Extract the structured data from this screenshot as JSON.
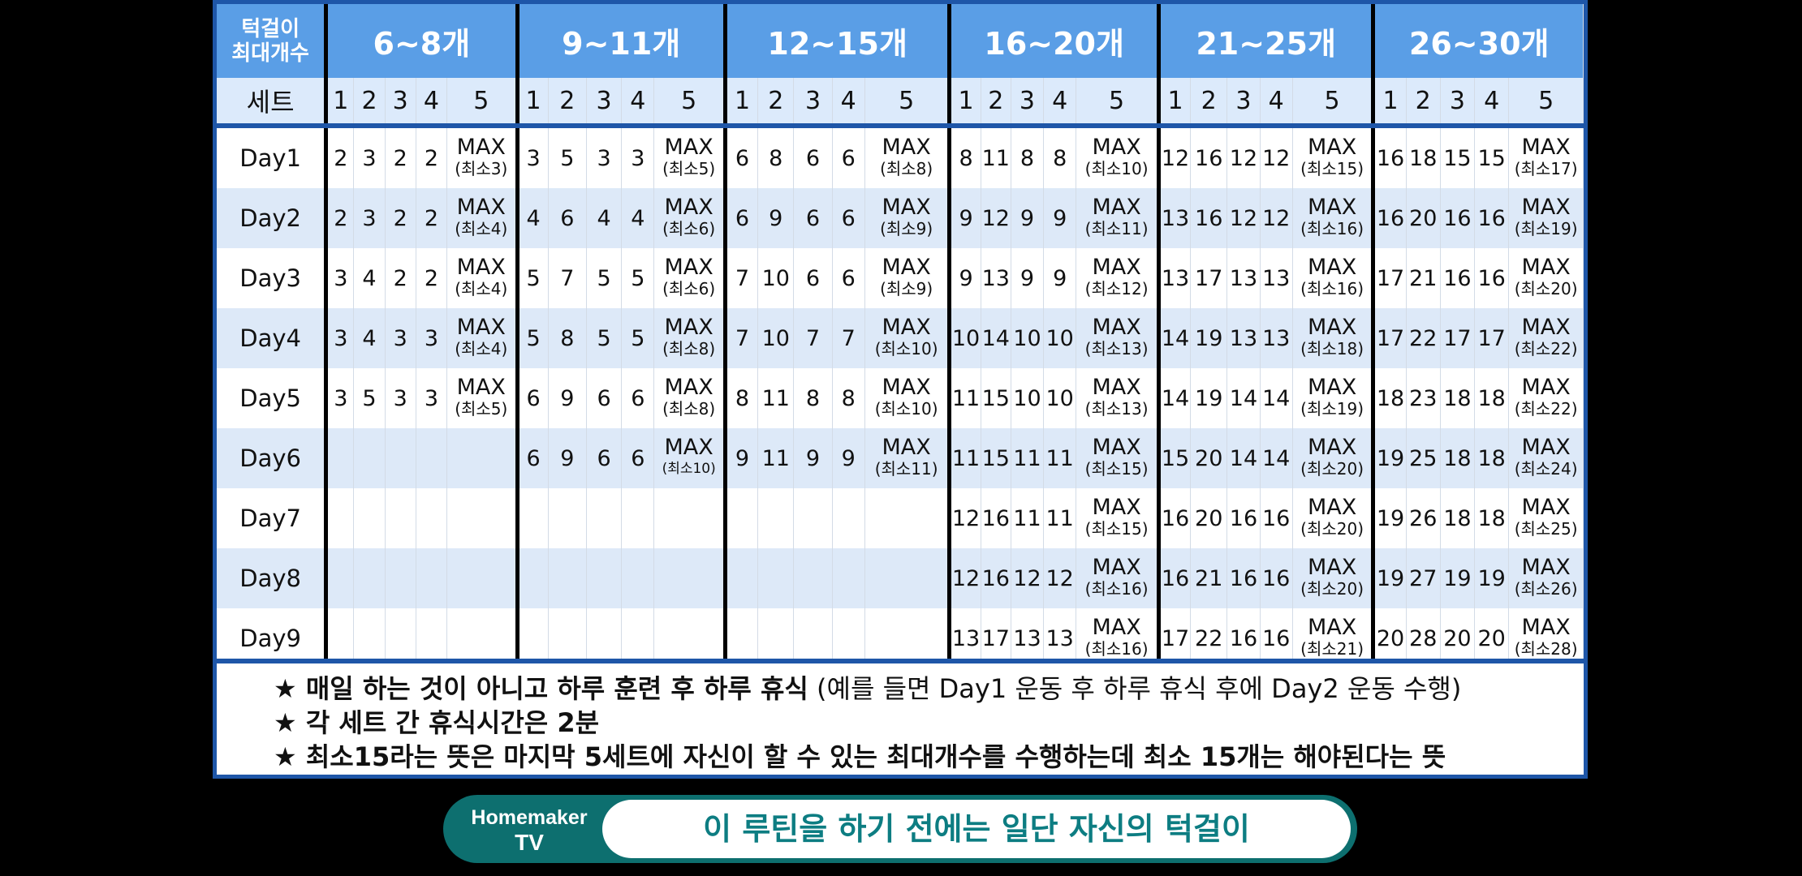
{
  "table": {
    "corner_line1": "턱걸이",
    "corner_line2": "최대개수",
    "sets_label": "세트",
    "groups": [
      "6~8개",
      "9~11개",
      "12~15개",
      "16~20개",
      "21~25개",
      "26~30개"
    ],
    "set_numbers": [
      "1",
      "2",
      "3",
      "4",
      "5"
    ],
    "max_label": "MAX",
    "days": [
      {
        "label": "Day1",
        "cells": [
          [
            "2",
            "3",
            "2",
            "2",
            "(최소3)"
          ],
          [
            "3",
            "5",
            "3",
            "3",
            "(최소5)"
          ],
          [
            "6",
            "8",
            "6",
            "6",
            "(최소8)"
          ],
          [
            "8",
            "11",
            "8",
            "8",
            "(최소10)"
          ],
          [
            "12",
            "16",
            "12",
            "12",
            "(최소15)"
          ],
          [
            "16",
            "18",
            "15",
            "15",
            "(최소17)"
          ]
        ]
      },
      {
        "label": "Day2",
        "cells": [
          [
            "2",
            "3",
            "2",
            "2",
            "(최소4)"
          ],
          [
            "4",
            "6",
            "4",
            "4",
            "(최소6)"
          ],
          [
            "6",
            "9",
            "6",
            "6",
            "(최소9)"
          ],
          [
            "9",
            "12",
            "9",
            "9",
            "(최소11)"
          ],
          [
            "13",
            "16",
            "12",
            "12",
            "(최소16)"
          ],
          [
            "16",
            "20",
            "16",
            "16",
            "(최소19)"
          ]
        ]
      },
      {
        "label": "Day3",
        "cells": [
          [
            "3",
            "4",
            "2",
            "2",
            "(최소4)"
          ],
          [
            "5",
            "7",
            "5",
            "5",
            "(최소6)"
          ],
          [
            "7",
            "10",
            "6",
            "6",
            "(최소9)"
          ],
          [
            "9",
            "13",
            "9",
            "9",
            "(최소12)"
          ],
          [
            "13",
            "17",
            "13",
            "13",
            "(최소16)"
          ],
          [
            "17",
            "21",
            "16",
            "16",
            "(최소20)"
          ]
        ]
      },
      {
        "label": "Day4",
        "cells": [
          [
            "3",
            "4",
            "3",
            "3",
            "(최소4)"
          ],
          [
            "5",
            "8",
            "5",
            "5",
            "(최소8)"
          ],
          [
            "7",
            "10",
            "7",
            "7",
            "(최소10)"
          ],
          [
            "10",
            "14",
            "10",
            "10",
            "(최소13)"
          ],
          [
            "14",
            "19",
            "13",
            "13",
            "(최소18)"
          ],
          [
            "17",
            "22",
            "17",
            "17",
            "(최소22)"
          ]
        ]
      },
      {
        "label": "Day5",
        "cells": [
          [
            "3",
            "5",
            "3",
            "3",
            "(최소5)"
          ],
          [
            "6",
            "9",
            "6",
            "6",
            "(최소8)"
          ],
          [
            "8",
            "11",
            "8",
            "8",
            "(최소10)"
          ],
          [
            "11",
            "15",
            "10",
            "10",
            "(최소13)"
          ],
          [
            "14",
            "19",
            "14",
            "14",
            "(최소19)"
          ],
          [
            "18",
            "23",
            "18",
            "18",
            "(최소22)"
          ]
        ]
      },
      {
        "label": "Day6",
        "cells": [
          null,
          [
            "6",
            "9",
            "6",
            "6",
            "(최소10)"
          ],
          [
            "9",
            "11",
            "9",
            "9",
            "(최소11)"
          ],
          [
            "11",
            "15",
            "11",
            "11",
            "(최소15)"
          ],
          [
            "15",
            "20",
            "14",
            "14",
            "(최소20)"
          ],
          [
            "19",
            "25",
            "18",
            "18",
            "(최소24)"
          ]
        ]
      },
      {
        "label": "Day7",
        "cells": [
          null,
          null,
          null,
          [
            "12",
            "16",
            "11",
            "11",
            "(최소15)"
          ],
          [
            "16",
            "20",
            "16",
            "16",
            "(최소20)"
          ],
          [
            "19",
            "26",
            "18",
            "18",
            "(최소25)"
          ]
        ]
      },
      {
        "label": "Day8",
        "cells": [
          null,
          null,
          null,
          [
            "12",
            "16",
            "12",
            "12",
            "(최소16)"
          ],
          [
            "16",
            "21",
            "16",
            "16",
            "(최소20)"
          ],
          [
            "19",
            "27",
            "19",
            "19",
            "(최소26)"
          ]
        ]
      },
      {
        "label": "Day9",
        "cells": [
          null,
          null,
          null,
          [
            "13",
            "17",
            "13",
            "13",
            "(최소16)"
          ],
          [
            "17",
            "22",
            "16",
            "16",
            "(최소21)"
          ],
          [
            "20",
            "28",
            "20",
            "20",
            "(최소28)"
          ]
        ]
      }
    ]
  },
  "notes": [
    {
      "bold": "★ 매일 하는 것이 아니고 하루 훈련 후 하루 휴식",
      "normal": " (예를 들면 Day1 운동 후 하루 휴식 후에 Day2 운동 수행)"
    },
    {
      "bold": "★ 각 세트 간 휴식시간은 2분",
      "normal": ""
    },
    {
      "bold": "★ 최소15라는 뜻은 마지막 5세트에 자신이 할 수 있는 최대개수를 수행하는데 최소 15개는 해야된다는 뜻",
      "normal": ""
    }
  ],
  "caption": {
    "brand_line1": "Homemaker",
    "brand_line2": "TV",
    "text": "이 루틴을 하기 전에는 일단 자신의 턱걸이"
  },
  "colors": {
    "header_blue": "#5a9ee6",
    "header_light": "#dceafb",
    "border_blue": "#1e56a8",
    "row_alt": "#dde9f8",
    "caption_teal": "#0d6f6f"
  }
}
